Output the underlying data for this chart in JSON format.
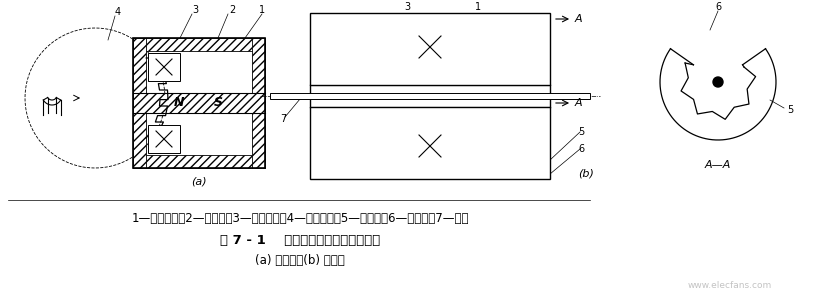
{
  "bg_color": "#ffffff",
  "text_lines": [
    "1—永久磁铁；2—软磁铁；3—感应线圈；4—测量齿轮；5—内齿轮；6—外齿轮；7—转轴",
    "图 7 - 1    变磁通式磁电传感器结构图",
    "(a) 开磁路；(b) 闭磁路"
  ],
  "watermark": "www.elecfans.com",
  "fig_width": 8.15,
  "fig_height": 3.07
}
